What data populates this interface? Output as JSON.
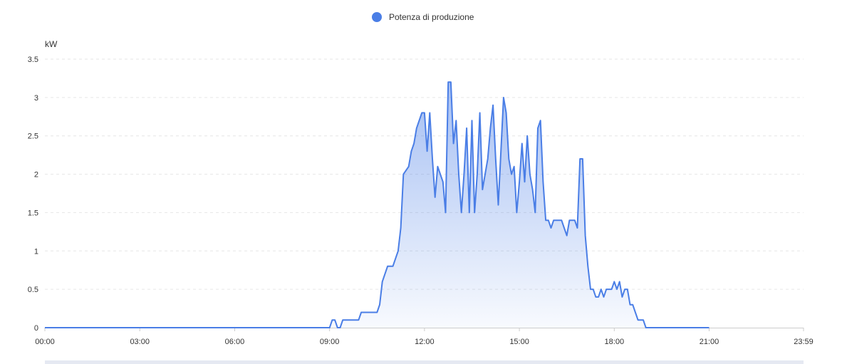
{
  "legend": {
    "label": "Potenza di produzione",
    "color": "#4a7ee6"
  },
  "chart_data": {
    "type": "area",
    "ylabel": "kW",
    "ylim": [
      0,
      3.5
    ],
    "y_ticks": [
      "0",
      "0.5",
      "1",
      "1.5",
      "2",
      "2.5",
      "3",
      "3.5"
    ],
    "x_ticks": [
      "00:00",
      "03:00",
      "06:00",
      "09:00",
      "12:00",
      "15:00",
      "18:00",
      "21:00",
      "23:59"
    ],
    "xlim_minutes": [
      0,
      1439
    ],
    "grid": true,
    "legend_position": "top-center",
    "line_color": "#4a7ee6",
    "series": [
      {
        "name": "Potenza di produzione",
        "x": [
          "00:00",
          "09:00",
          "09:05",
          "09:10",
          "09:15",
          "09:20",
          "09:25",
          "09:30",
          "09:40",
          "09:45",
          "09:55",
          "10:00",
          "10:10",
          "10:30",
          "10:35",
          "10:40",
          "10:45",
          "10:50",
          "10:55",
          "11:00",
          "11:05",
          "11:10",
          "11:15",
          "11:20",
          "11:25",
          "11:30",
          "11:35",
          "11:40",
          "11:45",
          "11:50",
          "11:55",
          "12:00",
          "12:05",
          "12:10",
          "12:15",
          "12:20",
          "12:25",
          "12:30",
          "12:35",
          "12:40",
          "12:45",
          "12:50",
          "12:55",
          "13:00",
          "13:05",
          "13:10",
          "13:15",
          "13:20",
          "13:25",
          "13:30",
          "13:35",
          "13:40",
          "13:45",
          "13:50",
          "13:55",
          "14:00",
          "14:05",
          "14:10",
          "14:15",
          "14:20",
          "14:25",
          "14:30",
          "14:35",
          "14:40",
          "14:45",
          "14:50",
          "14:55",
          "15:00",
          "15:05",
          "15:10",
          "15:15",
          "15:20",
          "15:25",
          "15:30",
          "15:35",
          "15:40",
          "15:45",
          "15:50",
          "15:55",
          "16:00",
          "16:05",
          "16:10",
          "16:15",
          "16:20",
          "16:25",
          "16:30",
          "16:35",
          "16:40",
          "16:45",
          "16:50",
          "16:55",
          "17:00",
          "17:05",
          "17:10",
          "17:15",
          "17:20",
          "17:25",
          "17:30",
          "17:35",
          "17:40",
          "17:45",
          "17:50",
          "17:55",
          "18:00",
          "18:05",
          "18:10",
          "18:15",
          "18:20",
          "18:25",
          "18:30",
          "18:35",
          "18:40",
          "18:45",
          "18:50",
          "18:55",
          "19:00",
          "19:05",
          "21:00"
        ],
        "values": [
          0,
          0,
          0.1,
          0.1,
          0,
          0,
          0.1,
          0.1,
          0.1,
          0.1,
          0.1,
          0.2,
          0.2,
          0.2,
          0.3,
          0.6,
          0.7,
          0.8,
          0.8,
          0.8,
          0.9,
          1.0,
          1.3,
          2.0,
          2.05,
          2.1,
          2.3,
          2.4,
          2.6,
          2.7,
          2.8,
          2.8,
          2.3,
          2.8,
          2.2,
          1.7,
          2.1,
          2.0,
          1.9,
          1.5,
          3.2,
          3.2,
          2.4,
          2.7,
          2.0,
          1.5,
          2.0,
          2.6,
          1.5,
          2.7,
          1.5,
          2.0,
          2.8,
          1.8,
          2.0,
          2.2,
          2.6,
          2.9,
          2.2,
          1.6,
          2.3,
          3.0,
          2.8,
          2.2,
          2.0,
          2.1,
          1.5,
          1.9,
          2.4,
          1.9,
          2.5,
          2.0,
          1.8,
          1.5,
          2.6,
          2.7,
          1.9,
          1.4,
          1.4,
          1.3,
          1.4,
          1.4,
          1.4,
          1.4,
          1.3,
          1.2,
          1.4,
          1.4,
          1.4,
          1.3,
          2.2,
          2.2,
          1.2,
          0.8,
          0.5,
          0.5,
          0.4,
          0.4,
          0.5,
          0.4,
          0.5,
          0.5,
          0.5,
          0.6,
          0.5,
          0.6,
          0.4,
          0.5,
          0.5,
          0.3,
          0.3,
          0.2,
          0.1,
          0.1,
          0.1,
          0,
          0,
          0
        ]
      }
    ]
  }
}
